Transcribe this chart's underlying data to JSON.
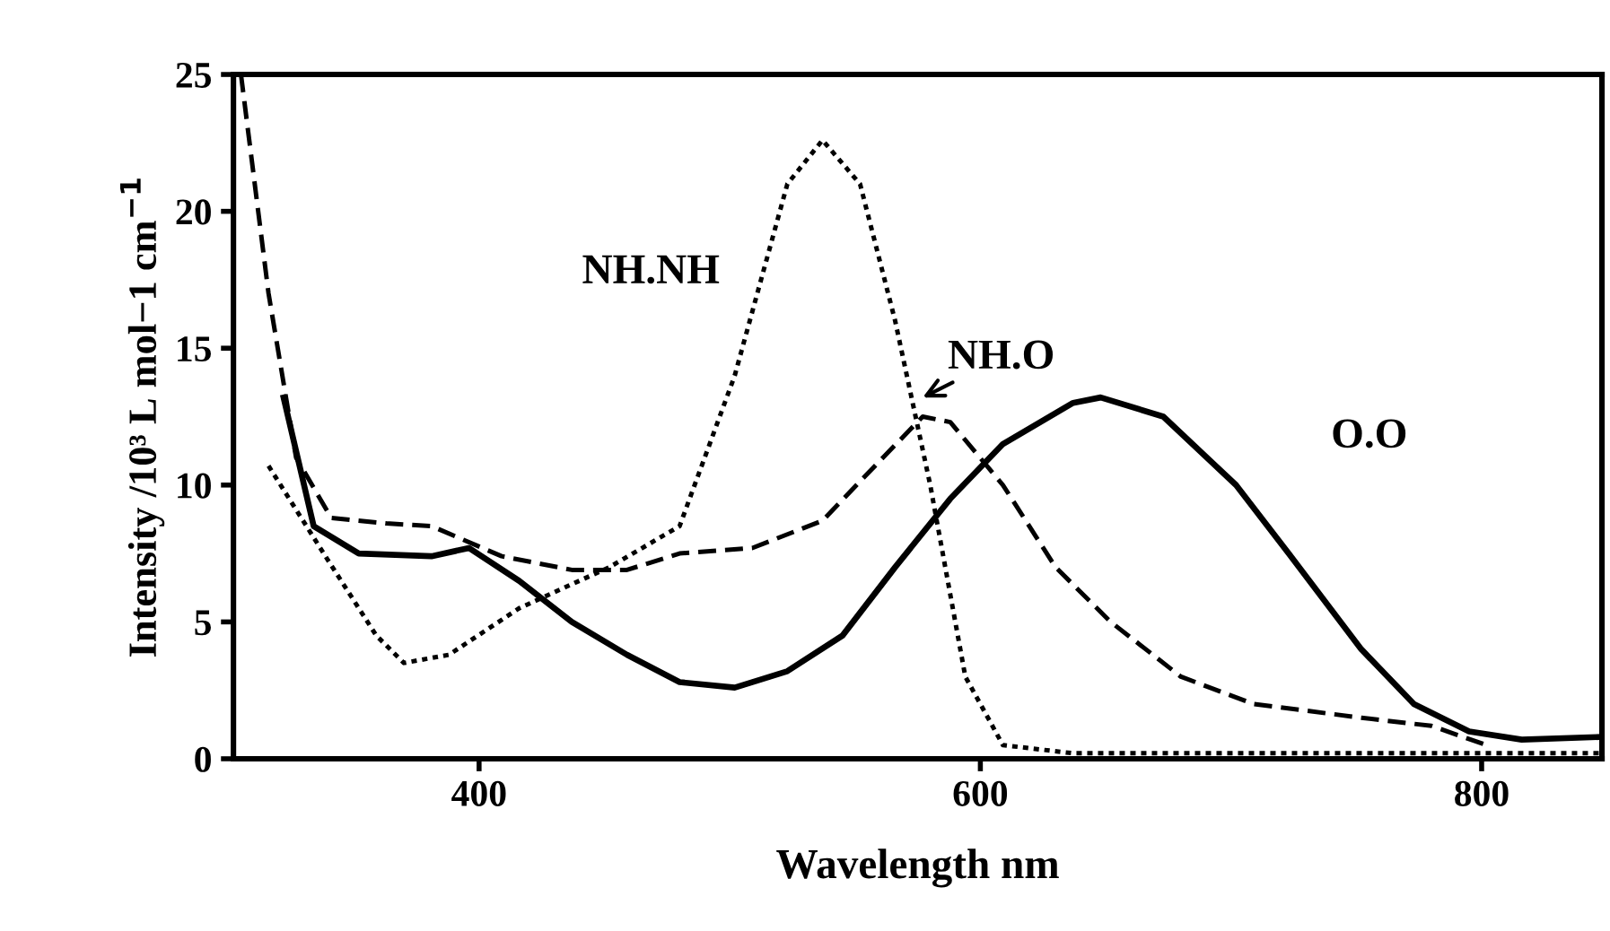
{
  "chart_data": {
    "type": "line",
    "xlabel": "Wavelength nm",
    "ylabel": "Intensity /10³ L mol−1 cm$^{−1}$",
    "xlim": [
      302,
      848
    ],
    "ylim": [
      0,
      25
    ],
    "xticks": [
      400,
      600,
      800
    ],
    "yticks": [
      0,
      5,
      10,
      15,
      20,
      25
    ],
    "grid": false,
    "legend": false,
    "series": [
      {
        "name": "O.O",
        "color": "#000000",
        "line_style": "solid",
        "x": [
          322,
          334,
          352,
          381,
          396,
          416,
          437,
          459,
          480,
          502,
          523,
          545,
          566,
          588,
          609,
          637,
          648,
          673,
          702,
          723,
          752,
          773,
          795,
          816,
          848
        ],
        "values": [
          13.2,
          8.5,
          7.5,
          7.4,
          7.7,
          6.5,
          5.0,
          3.8,
          2.8,
          2.6,
          3.2,
          4.5,
          7.0,
          9.5,
          11.5,
          13.0,
          13.2,
          12.5,
          10.0,
          7.5,
          4.0,
          2.0,
          1.0,
          0.7,
          0.8
        ]
      },
      {
        "name": "NH.O",
        "color": "#000000",
        "line_style": "dashed",
        "x": [
          305,
          316,
          327,
          341,
          363,
          381,
          409,
          437,
          459,
          480,
          509,
          537,
          559,
          577,
          588,
          609,
          630,
          652,
          680,
          709,
          752,
          780,
          802
        ],
        "values": [
          25.0,
          17.0,
          11.0,
          8.8,
          8.6,
          8.5,
          7.4,
          6.9,
          6.9,
          7.5,
          7.7,
          8.7,
          10.8,
          12.5,
          12.3,
          10.0,
          7.0,
          5.0,
          3.0,
          2.0,
          1.5,
          1.2,
          0.5
        ]
      },
      {
        "name": "NH.NH",
        "color": "#000000",
        "line_style": "dotted",
        "x": [
          316,
          338,
          359,
          370,
          388,
          416,
          452,
          480,
          502,
          523,
          537,
          552,
          566,
          580,
          594,
          609,
          637,
          848
        ],
        "values": [
          10.7,
          7.5,
          4.5,
          3.5,
          3.8,
          5.5,
          7.0,
          8.5,
          14.0,
          21.0,
          22.6,
          21.0,
          16.0,
          10.0,
          3.0,
          0.5,
          0.2,
          0.2
        ]
      }
    ]
  }
}
